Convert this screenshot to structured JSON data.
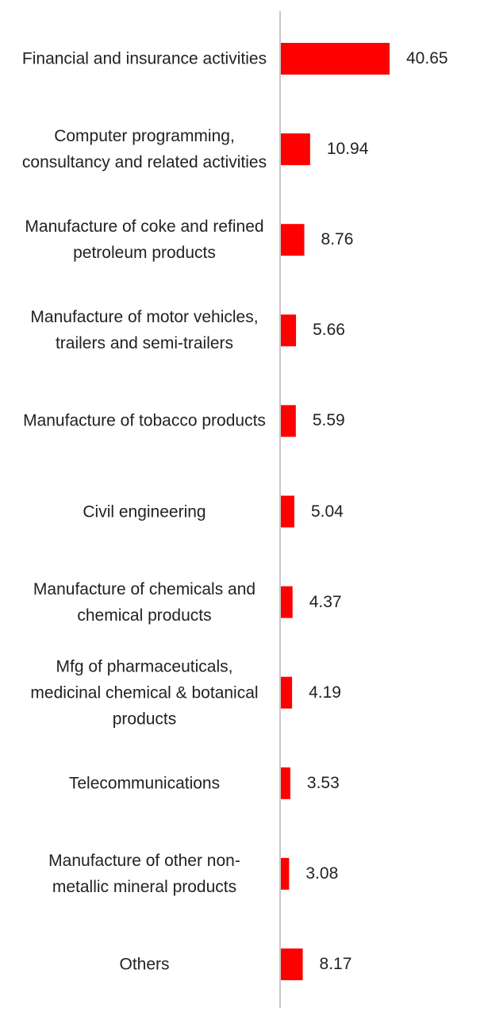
{
  "chart_data": {
    "type": "bar",
    "orientation": "horizontal",
    "categories": [
      "Financial and insurance activities",
      "Computer programming, consultancy and related activities",
      "Manufacture of coke and refined petroleum products",
      "Manufacture of motor vehicles, trailers and semi-trailers",
      "Manufacture of tobacco products",
      "Civil engineering",
      "Manufacture of chemicals and chemical products",
      "Mfg of pharmaceuticals, medicinal chemical & botanical products",
      "Telecommunications",
      "Manufacture of other non-metallic mineral products",
      "Others"
    ],
    "values": [
      40.65,
      10.94,
      8.76,
      5.66,
      5.59,
      5.04,
      4.37,
      4.19,
      3.53,
      3.08,
      8.17
    ],
    "value_labels": [
      "40.65",
      "10.94",
      "8.76",
      "5.66",
      "5.59",
      "5.04",
      "4.37",
      "4.19",
      "3.53",
      "3.08",
      "8.17"
    ],
    "title": "",
    "xlabel": "",
    "ylabel": "",
    "xlim": [
      0,
      40.65
    ],
    "grid": false,
    "legend": "none",
    "bar_color": "#ff0000",
    "axis_color": "#c8c8c8"
  }
}
